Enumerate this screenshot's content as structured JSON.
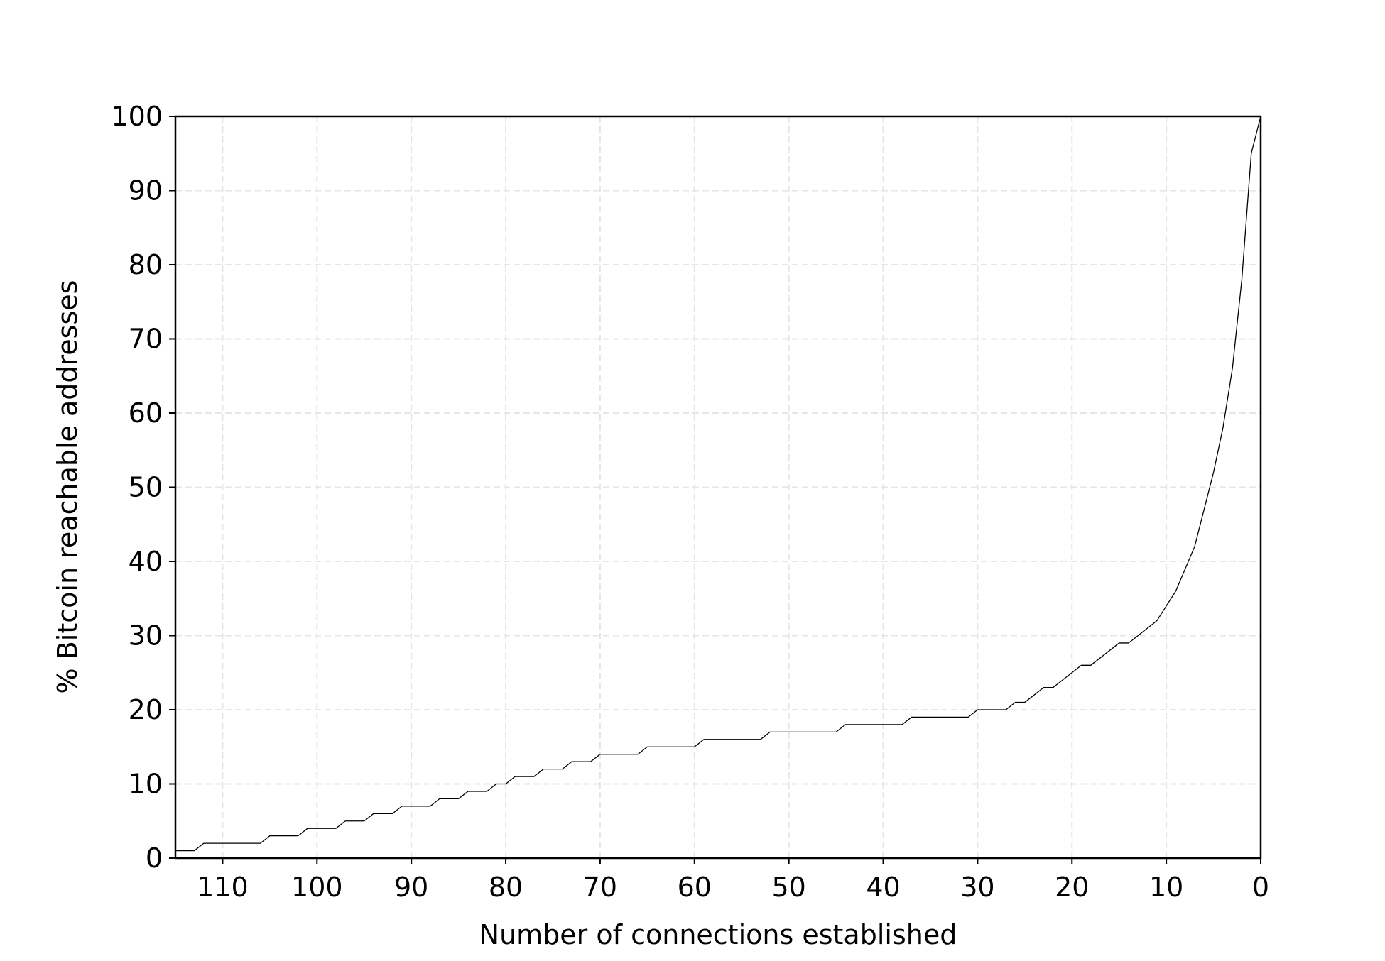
{
  "chart_data": {
    "type": "line",
    "x_label": "Number of connections established",
    "y_label": "% Bitcoin reachable addresses",
    "x": [
      115,
      113,
      112,
      106,
      105,
      102,
      101,
      98,
      97,
      95,
      94,
      92,
      91,
      88,
      87,
      85,
      84,
      82,
      81,
      80,
      79,
      77,
      76,
      74,
      73,
      71,
      70,
      66,
      65,
      60,
      59,
      53,
      52,
      45,
      44,
      38,
      37,
      31,
      30,
      27,
      26,
      25,
      23,
      22,
      19,
      18,
      15,
      14,
      11,
      10,
      9,
      7,
      5,
      4,
      3,
      2,
      1,
      0
    ],
    "series": [
      {
        "color": "#000000",
        "values": [
          1,
          1,
          2,
          2,
          3,
          3,
          4,
          4,
          5,
          5,
          6,
          6,
          7,
          7,
          8,
          8,
          9,
          9,
          10,
          10,
          11,
          11,
          12,
          12,
          13,
          13,
          14,
          14,
          15,
          15,
          16,
          16,
          17,
          17,
          18,
          18,
          19,
          19,
          20,
          20,
          21,
          21,
          23,
          23,
          26,
          26,
          29,
          29,
          32,
          34,
          36,
          42,
          52,
          58,
          66,
          78,
          95,
          100
        ]
      }
    ],
    "xlim": [
      115,
      0
    ],
    "xticks": [
      110,
      100,
      90,
      80,
      70,
      60,
      50,
      40,
      30,
      20,
      10,
      0
    ],
    "ylim": [
      0,
      100
    ],
    "yticks": [
      0,
      10,
      20,
      30,
      40,
      50,
      60,
      70,
      80,
      90,
      100
    ],
    "grid": true
  }
}
